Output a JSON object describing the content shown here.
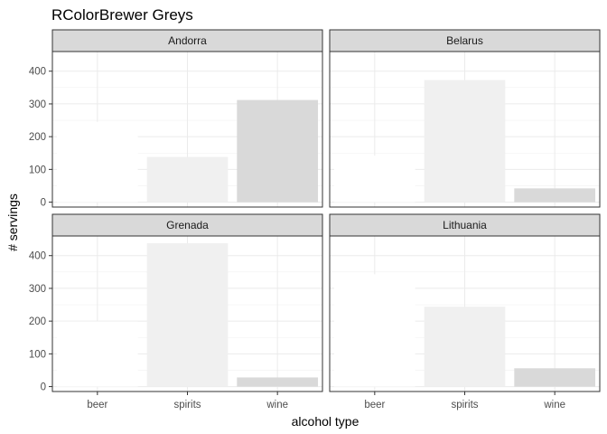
{
  "chart_data": {
    "type": "bar",
    "title": "RColorBrewer Greys",
    "xlabel": "alcohol type",
    "ylabel": "# servings",
    "categories": [
      "beer",
      "spirits",
      "wine"
    ],
    "colors": [
      "#ffffff",
      "#f0f0f0",
      "#d9d9d9"
    ],
    "ylim": [
      -15,
      460
    ],
    "yticks": [
      0,
      100,
      200,
      300,
      400
    ],
    "grid": true,
    "legend": "none",
    "panels": [
      {
        "name": "Andorra",
        "values": [
          245,
          138,
          312
        ]
      },
      {
        "name": "Belarus",
        "values": [
          142,
          373,
          42
        ]
      },
      {
        "name": "Grenada",
        "values": [
          199,
          438,
          28
        ]
      },
      {
        "name": "Lithuania",
        "values": [
          343,
          244,
          56
        ]
      }
    ]
  }
}
